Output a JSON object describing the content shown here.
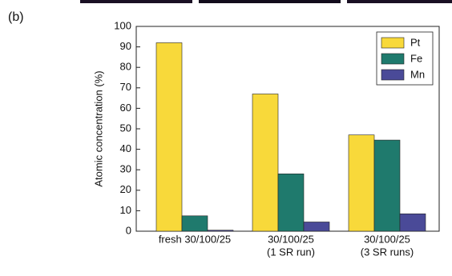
{
  "chart_data": {
    "type": "bar",
    "panel_label": "(b)",
    "y_label": "Atomic concentration (%)",
    "categories": [
      [
        "fresh 30/100/25"
      ],
      [
        "30/100/25",
        "(1 SR run)"
      ],
      [
        "30/100/25",
        "(3 SR runs)"
      ]
    ],
    "series": [
      {
        "name": "Pt",
        "color": "#f8d93a",
        "values": [
          92,
          67,
          47
        ]
      },
      {
        "name": "Fe",
        "color": "#1f7a6d",
        "values": [
          7.5,
          28,
          44.5
        ]
      },
      {
        "name": "Mn",
        "color": "#4a4a98",
        "values": [
          0.5,
          4.5,
          8.5
        ]
      }
    ],
    "ylim": [
      0,
      100
    ],
    "yticks": [
      0,
      10,
      20,
      30,
      40,
      50,
      60,
      70,
      80,
      90,
      100
    ],
    "legend": "upper right"
  }
}
